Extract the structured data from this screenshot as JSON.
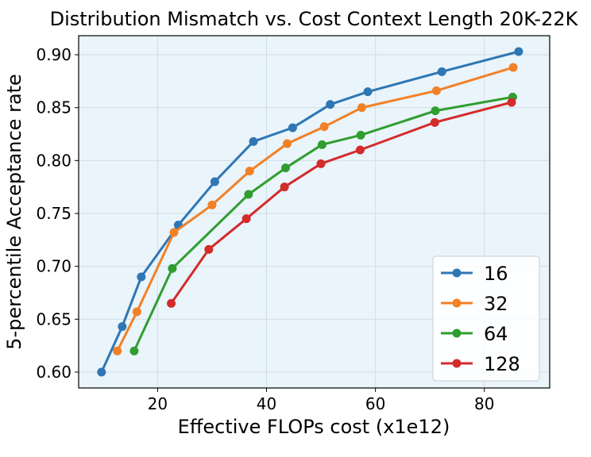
{
  "chart_data": {
    "type": "line",
    "title": "Distribution Mismatch vs. Cost Context Length 20K-22K",
    "xlabel": "Effective FLOPs cost (x1e12)",
    "ylabel": "5-percentile Acceptance rate",
    "xlim": [
      5.5,
      92
    ],
    "ylim": [
      0.585,
      0.918
    ],
    "xticks": [
      20,
      40,
      60,
      80
    ],
    "yticks": [
      0.6,
      0.65,
      0.7,
      0.75,
      0.8,
      0.85,
      0.9
    ],
    "ytick_labels": [
      "0.60",
      "0.65",
      "0.70",
      "0.75",
      "0.80",
      "0.85",
      "0.90"
    ],
    "grid": true,
    "background": "#e9f4fb",
    "legend_position": "bottom-right",
    "series": [
      {
        "name": "16",
        "color": "#2f76b4",
        "x": [
          9.7,
          13.5,
          17.0,
          23.8,
          30.5,
          37.6,
          44.8,
          51.7,
          58.6,
          72.2,
          86.3
        ],
        "y": [
          0.6,
          0.643,
          0.69,
          0.739,
          0.78,
          0.818,
          0.831,
          0.853,
          0.865,
          0.884,
          0.903
        ]
      },
      {
        "name": "32",
        "color": "#f28026",
        "x": [
          12.6,
          16.2,
          23.0,
          30.0,
          36.9,
          43.8,
          50.6,
          57.5,
          71.2,
          85.3
        ],
        "y": [
          0.62,
          0.657,
          0.732,
          0.758,
          0.79,
          0.816,
          0.832,
          0.85,
          0.866,
          0.888
        ]
      },
      {
        "name": "64",
        "color": "#2f9e2f",
        "x": [
          15.7,
          22.7,
          36.7,
          43.5,
          50.2,
          57.3,
          71.0,
          85.2
        ],
        "y": [
          0.62,
          0.698,
          0.768,
          0.793,
          0.815,
          0.824,
          0.847,
          0.86
        ]
      },
      {
        "name": "128",
        "color": "#d42b2b",
        "x": [
          22.5,
          29.4,
          36.3,
          43.3,
          50.0,
          57.2,
          70.9,
          85.0
        ],
        "y": [
          0.665,
          0.716,
          0.745,
          0.775,
          0.797,
          0.81,
          0.836,
          0.855
        ]
      }
    ]
  }
}
